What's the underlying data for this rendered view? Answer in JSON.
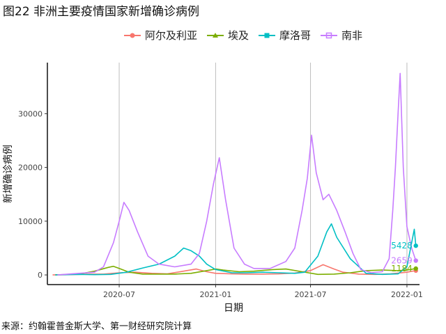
{
  "title": "图22 非洲主要疫情国家新增确诊病例",
  "source": "来源：约翰霍普金斯大学、第一财经研究院计算",
  "chart_data": {
    "type": "line",
    "xlabel": "日期",
    "ylabel": "新增确诊病例",
    "x_start": "2020-02-15",
    "x_end": "2022-01-25",
    "ylim": [
      -1800,
      39500
    ],
    "y_ticks": [
      0,
      10000,
      20000,
      30000
    ],
    "y_tick_labels": [
      "0",
      "10000",
      "20000",
      "30000"
    ],
    "x_ticks": [
      "2020-07-01",
      "2021-01-01",
      "2021-07-01",
      "2022-01-01"
    ],
    "x_tick_labels": [
      "2020-07",
      "2021-01",
      "2021-07",
      "2022-01"
    ],
    "grid": "vertical lines at x ticks",
    "legend_position": "top",
    "series": [
      {
        "name": "阿尔及利亚",
        "color": "#F8766D",
        "end_label": "",
        "points": [
          [
            "2020-02-25",
            0
          ],
          [
            "2020-04-01",
            50
          ],
          [
            "2020-05-01",
            150
          ],
          [
            "2020-06-01",
            150
          ],
          [
            "2020-07-01",
            400
          ],
          [
            "2020-08-01",
            500
          ],
          [
            "2020-09-01",
            300
          ],
          [
            "2020-10-01",
            200
          ],
          [
            "2020-11-01",
            700
          ],
          [
            "2020-11-25",
            1100
          ],
          [
            "2020-12-15",
            600
          ],
          [
            "2021-01-01",
            300
          ],
          [
            "2021-02-01",
            200
          ],
          [
            "2021-03-01",
            150
          ],
          [
            "2021-04-01",
            150
          ],
          [
            "2021-05-01",
            200
          ],
          [
            "2021-06-01",
            350
          ],
          [
            "2021-07-01",
            800
          ],
          [
            "2021-07-25",
            1900
          ],
          [
            "2021-08-15",
            1100
          ],
          [
            "2021-09-01",
            500
          ],
          [
            "2021-10-01",
            150
          ],
          [
            "2021-11-01",
            100
          ],
          [
            "2021-12-01",
            200
          ],
          [
            "2022-01-01",
            500
          ],
          [
            "2022-01-18",
            800
          ]
        ]
      },
      {
        "name": "埃及",
        "color": "#7CAE00",
        "end_label": "1184",
        "end_value": 1184,
        "points": [
          [
            "2020-03-01",
            0
          ],
          [
            "2020-04-15",
            150
          ],
          [
            "2020-05-15",
            700
          ],
          [
            "2020-06-10",
            1400
          ],
          [
            "2020-06-20",
            1600
          ],
          [
            "2020-07-01",
            1200
          ],
          [
            "2020-07-20",
            500
          ],
          [
            "2020-08-15",
            150
          ],
          [
            "2020-09-15",
            150
          ],
          [
            "2020-10-15",
            150
          ],
          [
            "2020-11-15",
            300
          ],
          [
            "2020-12-15",
            800
          ],
          [
            "2021-01-01",
            1100
          ],
          [
            "2021-01-15",
            900
          ],
          [
            "2021-02-15",
            600
          ],
          [
            "2021-03-15",
            700
          ],
          [
            "2021-04-20",
            1000
          ],
          [
            "2021-05-15",
            1100
          ],
          [
            "2021-06-15",
            600
          ],
          [
            "2021-07-15",
            100
          ],
          [
            "2021-08-15",
            150
          ],
          [
            "2021-09-15",
            400
          ],
          [
            "2021-10-15",
            800
          ],
          [
            "2021-11-15",
            900
          ],
          [
            "2021-12-15",
            800
          ],
          [
            "2022-01-01",
            900
          ],
          [
            "2022-01-18",
            1184
          ]
        ]
      },
      {
        "name": "摩洛哥",
        "color": "#00BFC4",
        "end_label": "5428",
        "end_value": 5428,
        "points": [
          [
            "2020-03-01",
            0
          ],
          [
            "2020-04-15",
            100
          ],
          [
            "2020-05-15",
            50
          ],
          [
            "2020-06-15",
            100
          ],
          [
            "2020-07-15",
            500
          ],
          [
            "2020-08-15",
            1300
          ],
          [
            "2020-09-15",
            2000
          ],
          [
            "2020-10-15",
            3500
          ],
          [
            "2020-11-01",
            5000
          ],
          [
            "2020-11-15",
            4500
          ],
          [
            "2020-12-01",
            3500
          ],
          [
            "2020-12-15",
            2000
          ],
          [
            "2021-01-01",
            1000
          ],
          [
            "2021-02-01",
            400
          ],
          [
            "2021-03-01",
            400
          ],
          [
            "2021-04-01",
            500
          ],
          [
            "2021-05-01",
            400
          ],
          [
            "2021-06-01",
            300
          ],
          [
            "2021-06-20",
            500
          ],
          [
            "2021-07-15",
            3500
          ],
          [
            "2021-08-01",
            8000
          ],
          [
            "2021-08-10",
            9500
          ],
          [
            "2021-08-20",
            7000
          ],
          [
            "2021-09-15",
            3000
          ],
          [
            "2021-10-15",
            300
          ],
          [
            "2021-11-15",
            100
          ],
          [
            "2021-12-15",
            200
          ],
          [
            "2022-01-01",
            1500
          ],
          [
            "2022-01-10",
            6000
          ],
          [
            "2022-01-15",
            8500
          ],
          [
            "2022-01-18",
            5428
          ]
        ]
      },
      {
        "name": "南非",
        "color": "#C77CFF",
        "end_label": "2659",
        "end_value": 2659,
        "points": [
          [
            "2020-03-05",
            0
          ],
          [
            "2020-04-15",
            300
          ],
          [
            "2020-05-15",
            500
          ],
          [
            "2020-06-01",
            1500
          ],
          [
            "2020-06-20",
            6000
          ],
          [
            "2020-07-01",
            10000
          ],
          [
            "2020-07-10",
            13500
          ],
          [
            "2020-07-20",
            12000
          ],
          [
            "2020-08-05",
            8000
          ],
          [
            "2020-08-25",
            3500
          ],
          [
            "2020-09-15",
            2000
          ],
          [
            "2020-10-15",
            1500
          ],
          [
            "2020-11-15",
            2000
          ],
          [
            "2020-12-01",
            4000
          ],
          [
            "2020-12-15",
            10000
          ],
          [
            "2020-12-28",
            17000
          ],
          [
            "2021-01-08",
            21800
          ],
          [
            "2021-01-20",
            14000
          ],
          [
            "2021-02-05",
            5000
          ],
          [
            "2021-02-25",
            2000
          ],
          [
            "2021-03-15",
            1200
          ],
          [
            "2021-04-15",
            1200
          ],
          [
            "2021-05-15",
            2500
          ],
          [
            "2021-06-01",
            5000
          ],
          [
            "2021-06-15",
            12000
          ],
          [
            "2021-06-25",
            18000
          ],
          [
            "2021-07-03",
            26000
          ],
          [
            "2021-07-12",
            19000
          ],
          [
            "2021-07-25",
            14000
          ],
          [
            "2021-08-05",
            15000
          ],
          [
            "2021-08-20",
            12000
          ],
          [
            "2021-09-05",
            8000
          ],
          [
            "2021-09-20",
            4000
          ],
          [
            "2021-10-05",
            1000
          ],
          [
            "2021-10-25",
            400
          ],
          [
            "2021-11-15",
            600
          ],
          [
            "2021-11-28",
            3000
          ],
          [
            "2021-12-05",
            12000
          ],
          [
            "2021-12-10",
            20000
          ],
          [
            "2021-12-15",
            30000
          ],
          [
            "2021-12-19",
            37500
          ],
          [
            "2021-12-25",
            20000
          ],
          [
            "2022-01-01",
            9000
          ],
          [
            "2022-01-10",
            5000
          ],
          [
            "2022-01-18",
            2659
          ]
        ]
      }
    ]
  }
}
